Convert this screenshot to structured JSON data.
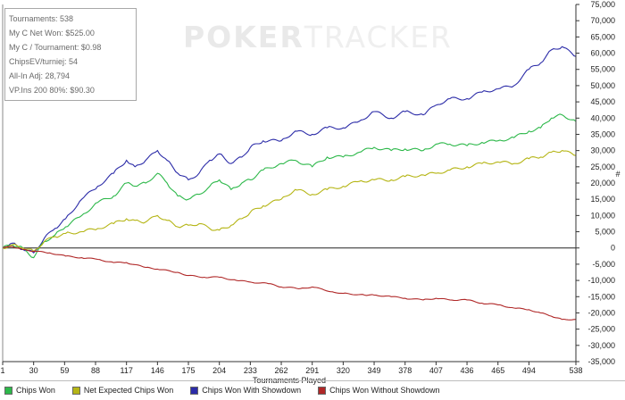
{
  "stats": [
    "Tournaments: 538",
    "My C Net Won: $525.00",
    "My C / Tournament: $0.98",
    "ChipsEV/turniej: 54",
    "All-In Adj: 28,794",
    "VP.Ins 200 80%: $90.30"
  ],
  "watermark": {
    "bold": "POKER",
    "light": "TRACKER"
  },
  "legend": [
    {
      "label": "Chips Won",
      "color": "#2db84a"
    },
    {
      "label": "Net Expected Chips Won",
      "color": "#b5b515"
    },
    {
      "label": "Chips Won With Showdown",
      "color": "#2c2ca8"
    },
    {
      "label": "Chips Won Without Showdown",
      "color": "#b02828"
    }
  ],
  "chart_data": {
    "type": "line",
    "xlabel": "Tournaments Played",
    "ylabel": "#",
    "xlim": [
      1,
      538
    ],
    "ylim": [
      -35000,
      75000
    ],
    "x_ticks": [
      1,
      30,
      59,
      88,
      117,
      146,
      175,
      204,
      233,
      262,
      291,
      320,
      349,
      378,
      407,
      436,
      465,
      494,
      538
    ],
    "y_ticks": [
      75000,
      70000,
      65000,
      60000,
      55000,
      50000,
      45000,
      40000,
      35000,
      30000,
      25000,
      20000,
      15000,
      10000,
      5000,
      0,
      -5000,
      -10000,
      -15000,
      -20000,
      -25000,
      -30000,
      -35000
    ],
    "y_tick_labels": [
      "75,000",
      "70,000",
      "65,000",
      "60,000",
      "55,000",
      "50,000",
      "45,000",
      "40,000",
      "35,000",
      "30,000",
      "25,000",
      "20,000",
      "15,000",
      "10,000",
      "5,000",
      "0",
      "-5,000",
      "-10,000",
      "-15,000",
      "-20,000",
      "-25,000",
      "-30,000",
      "-35,000"
    ],
    "series": [
      {
        "name": "Chips Won With Showdown",
        "color": "#2c2ca8",
        "x": [
          1,
          10,
          20,
          30,
          40,
          50,
          60,
          75,
          90,
          105,
          117,
          125,
          135,
          146,
          155,
          165,
          175,
          185,
          195,
          204,
          215,
          225,
          233,
          245,
          262,
          275,
          291,
          305,
          320,
          335,
          349,
          365,
          378,
          395,
          407,
          420,
          436,
          450,
          465,
          480,
          494,
          505,
          515,
          525,
          538
        ],
        "y": [
          0,
          1500,
          -500,
          -1500,
          3000,
          6000,
          9000,
          15000,
          19000,
          23000,
          27000,
          25000,
          27000,
          30000,
          27000,
          23000,
          21000,
          23000,
          27000,
          29000,
          26000,
          28000,
          31000,
          33000,
          33000,
          36000,
          35000,
          37000,
          37000,
          39000,
          42000,
          40000,
          42000,
          41000,
          44000,
          46000,
          46000,
          48000,
          49000,
          50000,
          55000,
          57000,
          61000,
          62000,
          59000
        ]
      },
      {
        "name": "Chips Won",
        "color": "#2db84a",
        "x": [
          1,
          10,
          20,
          30,
          40,
          50,
          60,
          75,
          90,
          105,
          117,
          125,
          135,
          146,
          155,
          165,
          175,
          185,
          195,
          204,
          215,
          225,
          233,
          245,
          262,
          275,
          291,
          305,
          320,
          335,
          349,
          365,
          378,
          395,
          407,
          420,
          436,
          450,
          465,
          480,
          494,
          505,
          515,
          525,
          538
        ],
        "y": [
          0,
          1000,
          0,
          -3000,
          2000,
          4000,
          6500,
          10000,
          14000,
          16000,
          20000,
          19000,
          20000,
          23000,
          20000,
          16000,
          15000,
          16500,
          19000,
          21000,
          18000,
          20000,
          21000,
          24000,
          26000,
          27000,
          25000,
          28000,
          28000,
          29500,
          31000,
          30000,
          30500,
          30000,
          32000,
          32000,
          31500,
          32500,
          33000,
          34000,
          36000,
          37000,
          40000,
          41000,
          39000
        ]
      },
      {
        "name": "Net Expected Chips Won",
        "color": "#b5b515",
        "x": [
          1,
          10,
          20,
          30,
          40,
          50,
          60,
          75,
          90,
          105,
          117,
          125,
          135,
          146,
          155,
          165,
          175,
          185,
          195,
          204,
          215,
          225,
          233,
          245,
          262,
          275,
          291,
          305,
          320,
          335,
          349,
          365,
          378,
          395,
          407,
          420,
          436,
          450,
          465,
          480,
          494,
          505,
          515,
          525,
          538
        ],
        "y": [
          0,
          1000,
          0,
          -1000,
          2000,
          3500,
          4500,
          5000,
          6000,
          7500,
          9000,
          8500,
          8000,
          10000,
          8500,
          6500,
          7000,
          7500,
          6000,
          5500,
          7000,
          9000,
          11000,
          13000,
          15000,
          18000,
          16500,
          18000,
          19000,
          20500,
          21000,
          21000,
          22000,
          22500,
          23000,
          24000,
          25000,
          26000,
          26500,
          26000,
          27500,
          28000,
          29500,
          30000,
          28500
        ]
      },
      {
        "name": "Chips Won Without Showdown",
        "color": "#b02828",
        "x": [
          1,
          10,
          20,
          30,
          45,
          60,
          75,
          90,
          105,
          117,
          135,
          146,
          165,
          175,
          190,
          204,
          220,
          233,
          250,
          262,
          280,
          291,
          310,
          320,
          340,
          349,
          365,
          378,
          395,
          407,
          420,
          436,
          450,
          465,
          480,
          494,
          505,
          515,
          525,
          538
        ],
        "y": [
          0,
          500,
          -500,
          -1000,
          -1500,
          -2500,
          -3000,
          -3500,
          -4500,
          -4500,
          -6000,
          -6500,
          -7500,
          -8500,
          -9000,
          -9000,
          -10000,
          -10500,
          -11000,
          -12000,
          -12500,
          -12000,
          -13500,
          -14000,
          -14500,
          -14500,
          -15000,
          -15500,
          -16000,
          -15500,
          -16000,
          -16000,
          -17000,
          -17500,
          -18500,
          -19000,
          -20000,
          -21000,
          -22000,
          -22000
        ]
      }
    ]
  }
}
